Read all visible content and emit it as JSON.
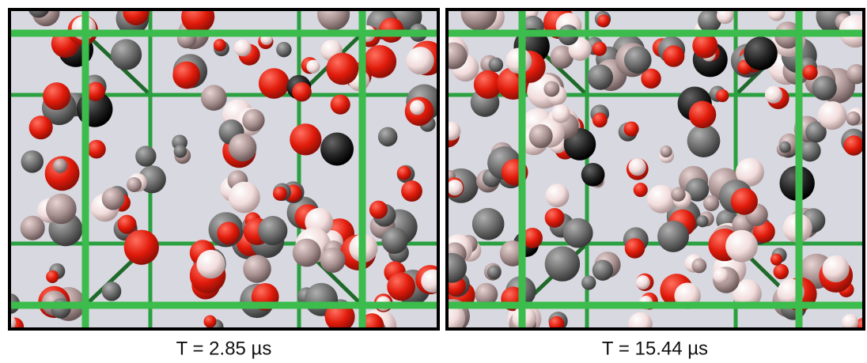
{
  "panels": [
    {
      "caption": "T = 2.85 µs"
    },
    {
      "caption": "T = 15.44 µs"
    }
  ]
}
